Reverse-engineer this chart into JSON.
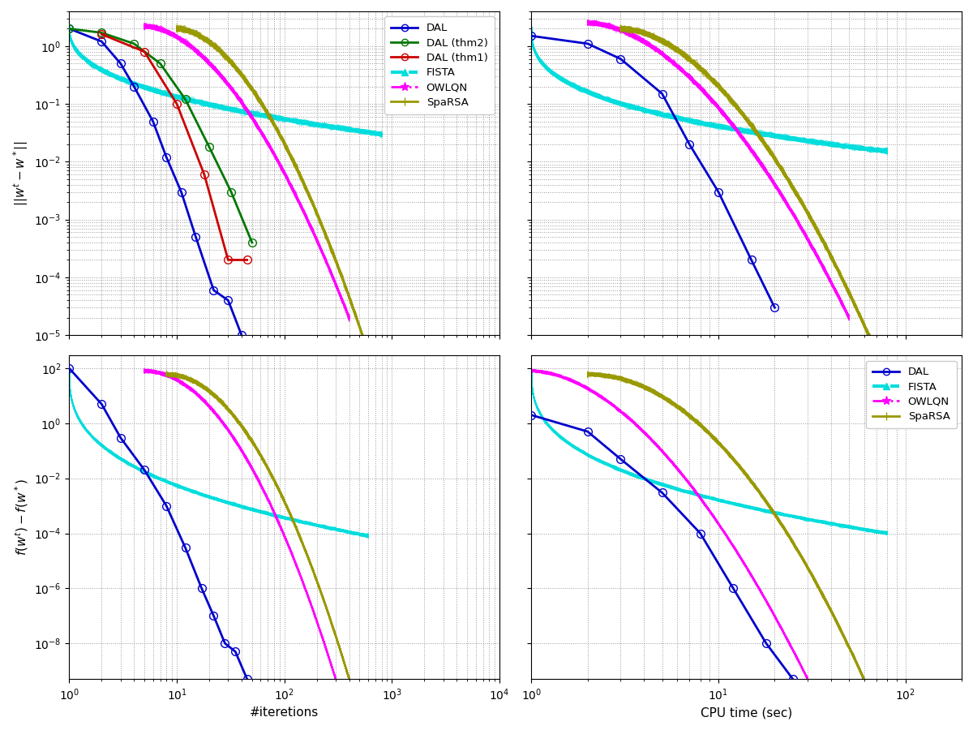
{
  "colors": {
    "DAL": "#0000cc",
    "DAL_thm2": "#007700",
    "DAL_thm1": "#cc0000",
    "FISTA": "#00dddd",
    "OWLQN": "#ff00ff",
    "SpaRSA": "#999900"
  },
  "top_left": {
    "xlim": [
      1,
      10000
    ],
    "ylim": [
      1e-05,
      4
    ],
    "ylabel": "||w^t - w^*||"
  },
  "top_right": {
    "xlim": [
      1,
      200
    ],
    "ylim": [
      1e-05,
      4
    ]
  },
  "bottom_left": {
    "xlim": [
      1,
      10000
    ],
    "ylim": [
      5e-10,
      300
    ],
    "xlabel": "#iteretions",
    "ylabel": "f(w^t) - f(w^*)"
  },
  "bottom_right": {
    "xlim": [
      1,
      200
    ],
    "ylim": [
      5e-10,
      300
    ],
    "xlabel": "CPU time (sec)"
  }
}
